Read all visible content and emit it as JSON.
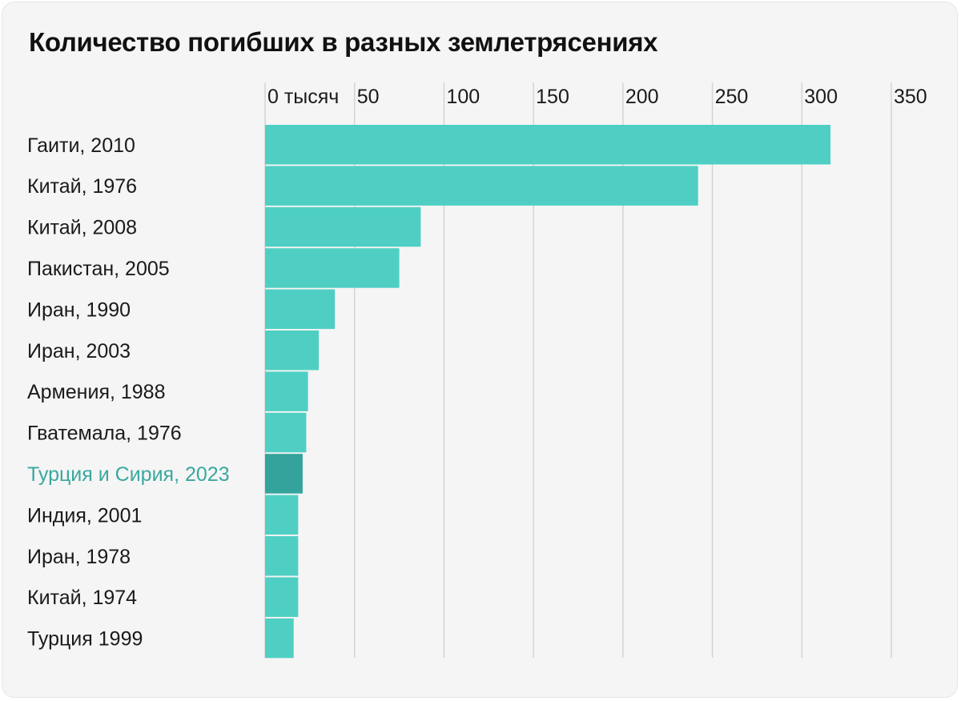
{
  "chart_data": {
    "type": "bar",
    "orientation": "horizontal",
    "title": "Количество погибших в разных землетрясениях",
    "xlabel": "",
    "ylabel": "",
    "x_ticks": [
      "0 тысяч",
      "50",
      "100",
      "150",
      "200",
      "250",
      "300",
      "350"
    ],
    "xlim": [
      0,
      350
    ],
    "grid": true,
    "categories": [
      "Гаити, 2010",
      "Китай, 1976",
      "Китай, 2008",
      "Пакистан, 2005",
      "Иран, 1990",
      "Иран, 2003",
      "Армения, 1988",
      "Гватемала, 1976",
      "Турция и Сирия, 2023",
      "Индия, 2001",
      "Иран, 1978",
      "Китай, 1974",
      "Турция 1999"
    ],
    "values": [
      316,
      242,
      87,
      75,
      39,
      30,
      24,
      23,
      21,
      18.5,
      18.5,
      18.5,
      16
    ],
    "highlight_index": 8,
    "colors": {
      "bar": "#4fcfc4",
      "highlight_bar": "#33a39b",
      "highlight_label": "#3aa89f",
      "grid": "#d4d4d4",
      "background": "#f5f5f5"
    }
  }
}
